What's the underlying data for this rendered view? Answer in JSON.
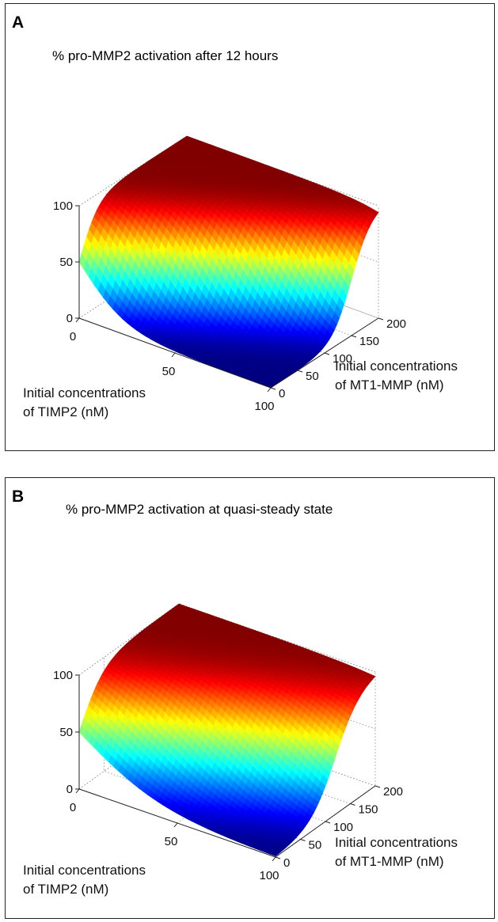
{
  "colors": {
    "colormap": "jet",
    "grid": "#8a8a8a",
    "frame": "#222222"
  },
  "chart_data": [
    {
      "type": "surface",
      "panel_label": "A",
      "title": "% pro-MMP2 activation after 12 hours",
      "x_label": [
        "Initial concentrations",
        "of TIMP2 (nM)"
      ],
      "y_label": [
        "Initial concentrations",
        "of MT1-MMP (nM)"
      ],
      "z_label": "",
      "x_ticks": [
        "0",
        "50",
        "100"
      ],
      "y_ticks": [
        "0",
        "50",
        "100",
        "150",
        "200"
      ],
      "z_ticks": [
        "0",
        "50",
        "100"
      ],
      "x_range": [
        0,
        100
      ],
      "y_range": [
        0,
        200
      ],
      "z_range": [
        0,
        100
      ],
      "grid": true,
      "surface_model": {
        "description": "activation rises with MT1-MMP, falls with TIMP2",
        "ridge_offset": 0,
        "ridge_slope": 1.5,
        "steepness": 0.055,
        "max": 100
      }
    },
    {
      "type": "surface",
      "panel_label": "B",
      "title": "% pro-MMP2 activation at quasi-steady state",
      "x_label": [
        "Initial concentrations",
        "of TIMP2 (nM)"
      ],
      "y_label": [
        "Initial concentrations",
        "of MT1-MMP (nM)"
      ],
      "z_label": "",
      "x_ticks": [
        "0",
        "50",
        "100"
      ],
      "y_ticks": [
        "0",
        "50",
        "100",
        "150",
        "200"
      ],
      "z_ticks": [
        "0",
        "50",
        "100"
      ],
      "x_range": [
        0,
        100
      ],
      "y_range": [
        0,
        200
      ],
      "z_range": [
        0,
        100
      ],
      "grid": true,
      "surface_model": {
        "description": "activation rises with MT1-MMP, falls with TIMP2",
        "ridge_offset": 0,
        "ridge_slope": 1.2,
        "steepness": 0.04,
        "max": 100
      }
    }
  ]
}
